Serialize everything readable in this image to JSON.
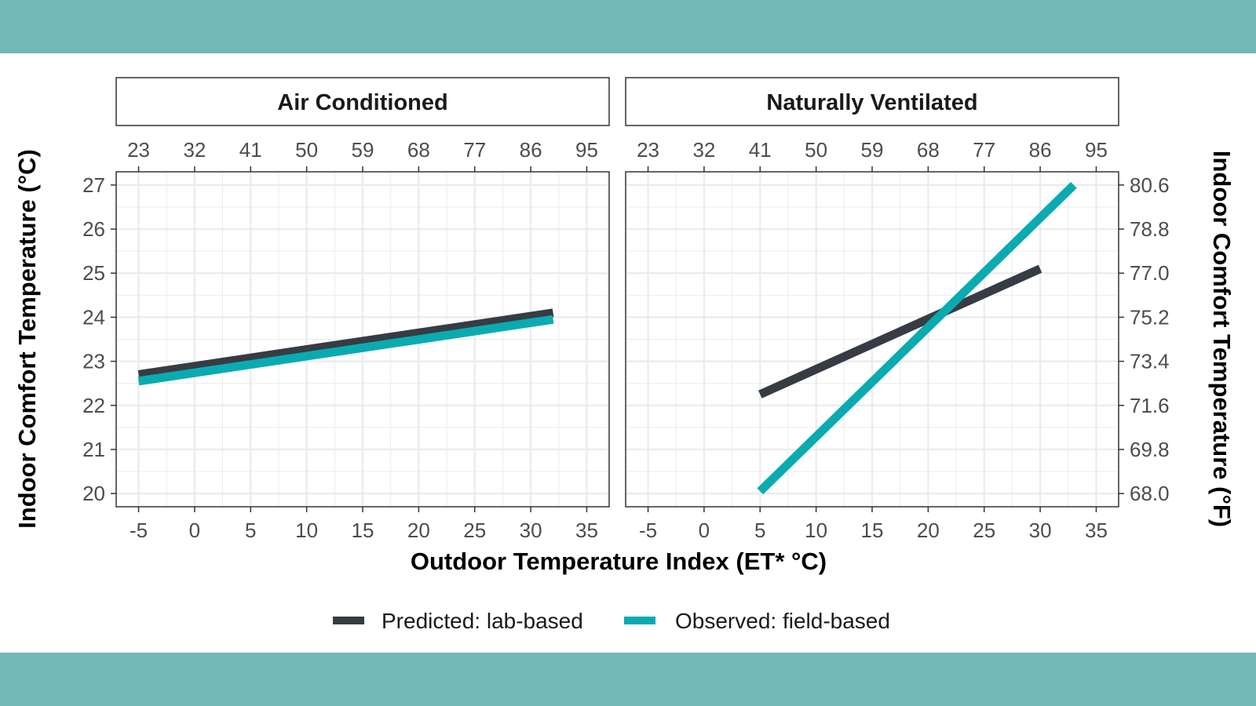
{
  "colors": {
    "band": "#72b9b7",
    "predicted": "#373c44",
    "observed": "#0aabb0",
    "grid": "#ebebeb",
    "panel_border": "#333333"
  },
  "chart_data": {
    "type": "line",
    "xlabel": "Outdoor Temperature Index (ET* °C)",
    "ylabel": "Indoor Comfort Temperature (°C)",
    "ylabel_right": "Indoor Comfort Temperature (°F)",
    "xlim": [
      -7,
      37
    ],
    "ylim": [
      19.7,
      27.3
    ],
    "x_ticks": [
      "-5",
      "0",
      "5",
      "10",
      "15",
      "20",
      "25",
      "30",
      "35"
    ],
    "x_ticks_top": [
      "23",
      "32",
      "41",
      "50",
      "59",
      "68",
      "77",
      "86",
      "95"
    ],
    "y_ticks": [
      "20",
      "21",
      "22",
      "23",
      "24",
      "25",
      "26",
      "27"
    ],
    "y_ticks_right": [
      "68.0",
      "69.8",
      "71.6",
      "73.4",
      "75.2",
      "77.0",
      "78.8",
      "80.6"
    ],
    "grid": true,
    "legend_position": "bottom",
    "legend": [
      "Predicted: lab-based",
      "Observed: field-based"
    ],
    "panels": [
      {
        "title": "Air Conditioned",
        "series": [
          {
            "name": "Predicted: lab-based",
            "x": [
              -5,
              32
            ],
            "y": [
              22.7,
              24.1
            ]
          },
          {
            "name": "Observed: field-based",
            "x": [
              -5,
              32
            ],
            "y": [
              22.55,
              23.95
            ]
          }
        ]
      },
      {
        "title": "Naturally Ventilated",
        "series": [
          {
            "name": "Predicted: lab-based",
            "x": [
              5,
              30
            ],
            "y": [
              22.25,
              25.1
            ]
          },
          {
            "name": "Observed: field-based",
            "x": [
              5,
              33
            ],
            "y": [
              20.05,
              27.0
            ]
          }
        ]
      }
    ]
  }
}
